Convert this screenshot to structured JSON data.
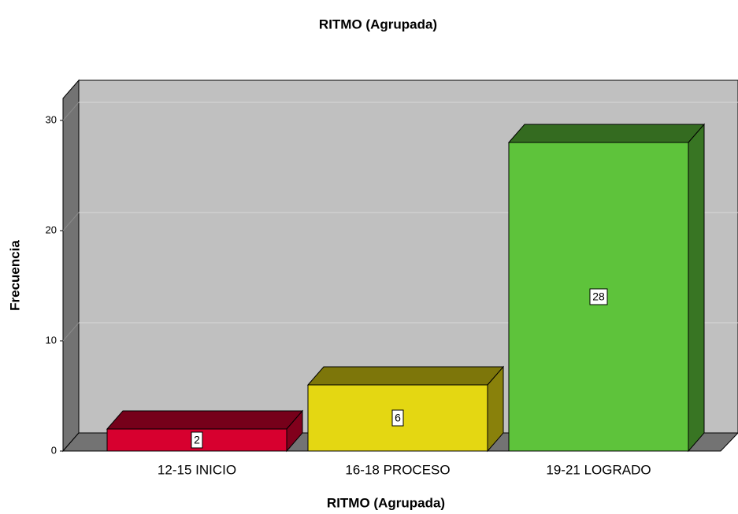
{
  "chart_data": {
    "type": "bar",
    "title": "RITMO (Agrupada)",
    "x_label": "RITMO (Agrupada)",
    "y_label": "Frecuencia",
    "categories": [
      "12-15 INICIO",
      "16-18 PROCESO",
      "19-21 LOGRADO"
    ],
    "values": [
      2,
      6,
      28
    ],
    "colors": [
      "#d7002f",
      "#e4d712",
      "#5ec33b"
    ],
    "ylim": [
      0,
      32
    ],
    "yticks": [
      0,
      10,
      20,
      30
    ],
    "grid": true
  }
}
